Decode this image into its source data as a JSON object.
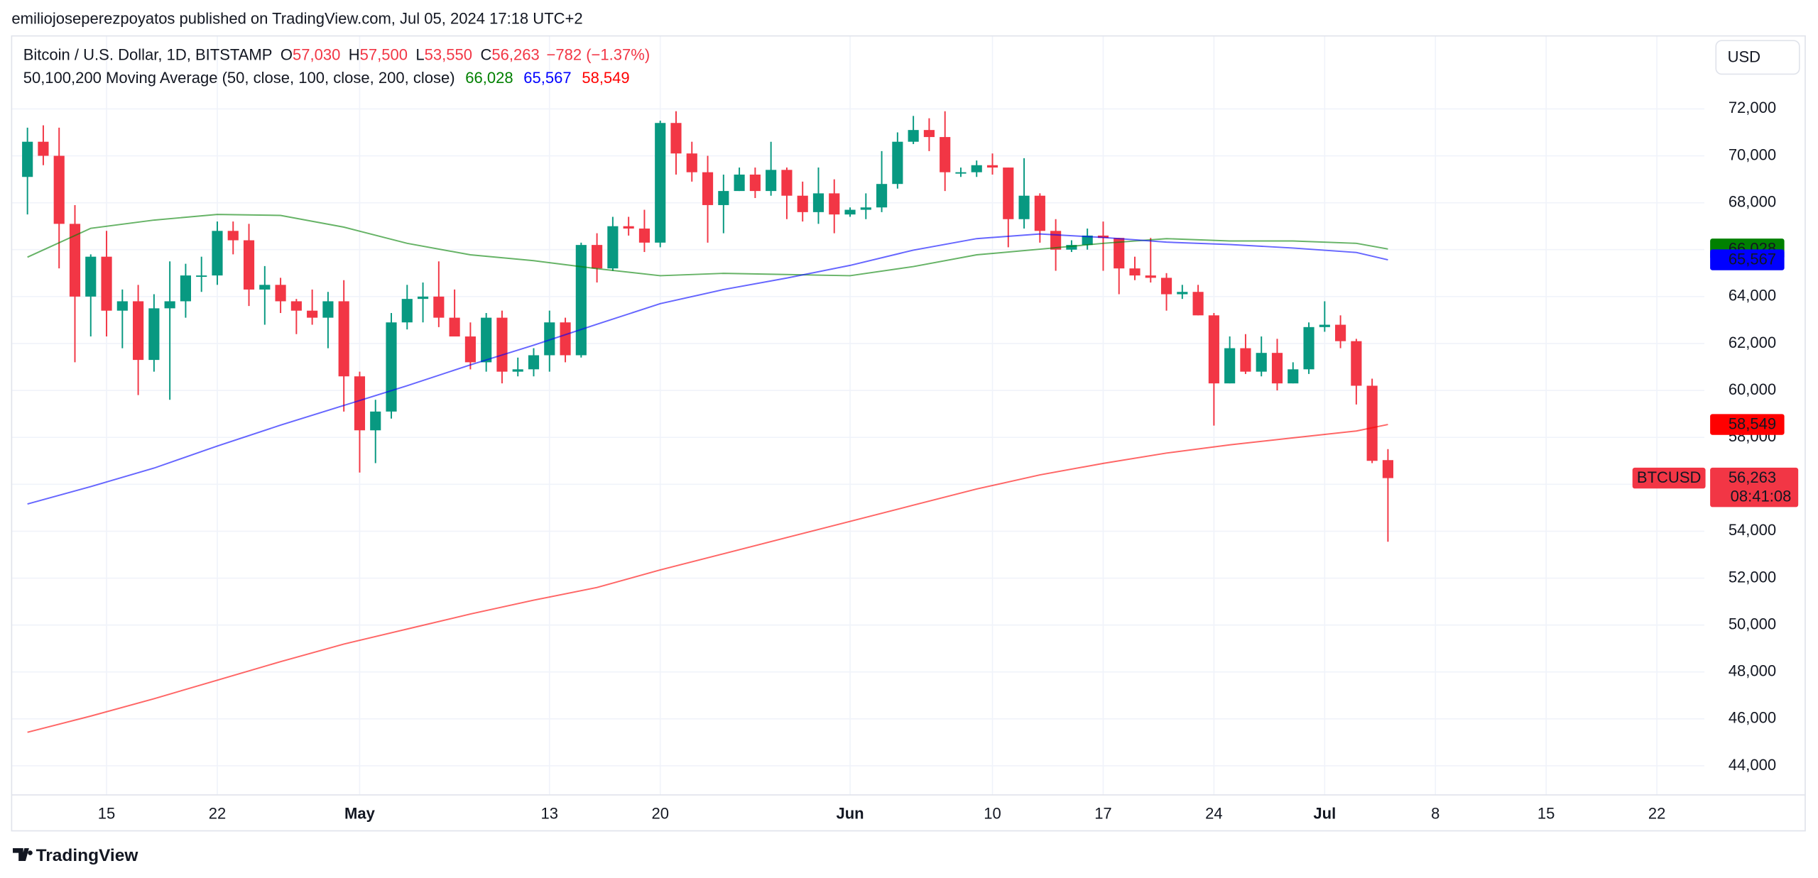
{
  "attribution": "emiliojoseperezpoyatos published on TradingView.com, Jul 05, 2024 17:18 UTC+2",
  "currency": "USD",
  "footer": "TradingView",
  "chart_data": {
    "type": "candlestick",
    "legend": {
      "symbol": "Bitcoin / U.S. Dollar, 1D, BITSTAMP",
      "ohlc": [
        {
          "key": "O",
          "label": "57,030"
        },
        {
          "key": "H",
          "label": "57,500"
        },
        {
          "key": "L",
          "label": "53,550"
        },
        {
          "key": "C",
          "label": "56,263"
        }
      ],
      "change": "−782 (−1.37%)",
      "ma_title": "50,100,200 Moving Average (50, close, 100, close, 200, close)"
    },
    "symbol_badge": "BTCUSD",
    "countdown": "08:41:08",
    "up_color": "#089981",
    "down_color": "#f23645",
    "x": [
      "2024-04-10",
      "2024-04-11",
      "2024-04-12",
      "2024-04-13",
      "2024-04-14",
      "2024-04-15",
      "2024-04-16",
      "2024-04-17",
      "2024-04-18",
      "2024-04-19",
      "2024-04-20",
      "2024-04-21",
      "2024-04-22",
      "2024-04-23",
      "2024-04-24",
      "2024-04-25",
      "2024-04-26",
      "2024-04-27",
      "2024-04-28",
      "2024-04-29",
      "2024-04-30",
      "2024-05-01",
      "2024-05-02",
      "2024-05-03",
      "2024-05-04",
      "2024-05-05",
      "2024-05-06",
      "2024-05-07",
      "2024-05-08",
      "2024-05-09",
      "2024-05-10",
      "2024-05-11",
      "2024-05-12",
      "2024-05-13",
      "2024-05-14",
      "2024-05-15",
      "2024-05-16",
      "2024-05-17",
      "2024-05-18",
      "2024-05-19",
      "2024-05-20",
      "2024-05-21",
      "2024-05-22",
      "2024-05-23",
      "2024-05-24",
      "2024-05-25",
      "2024-05-26",
      "2024-05-27",
      "2024-05-28",
      "2024-05-29",
      "2024-05-30",
      "2024-05-31",
      "2024-06-01",
      "2024-06-02",
      "2024-06-03",
      "2024-06-04",
      "2024-06-05",
      "2024-06-06",
      "2024-06-07",
      "2024-06-08",
      "2024-06-09",
      "2024-06-10",
      "2024-06-11",
      "2024-06-12",
      "2024-06-13",
      "2024-06-14",
      "2024-06-15",
      "2024-06-16",
      "2024-06-17",
      "2024-06-18",
      "2024-06-19",
      "2024-06-20",
      "2024-06-21",
      "2024-06-22",
      "2024-06-23",
      "2024-06-24",
      "2024-06-25",
      "2024-06-26",
      "2024-06-27",
      "2024-06-28",
      "2024-06-29",
      "2024-06-30",
      "2024-07-01",
      "2024-07-02",
      "2024-07-03",
      "2024-07-04",
      "2024-07-05"
    ],
    "open": [
      69100,
      70600,
      70000,
      67100,
      64000,
      65700,
      63400,
      63800,
      61300,
      63500,
      63800,
      64900,
      64900,
      66800,
      66400,
      64300,
      64500,
      63800,
      63400,
      63100,
      63800,
      60600,
      58300,
      59100,
      62900,
      63900,
      64000,
      63100,
      62300,
      61200,
      63100,
      60800,
      60900,
      61500,
      62900,
      61500,
      66200,
      65200,
      67000,
      66900,
      66300,
      71400,
      70100,
      69300,
      67900,
      68500,
      69200,
      68500,
      69400,
      68300,
      67600,
      68400,
      67500,
      67700,
      67800,
      68800,
      70600,
      71100,
      70800,
      69300,
      69300,
      69600,
      69500,
      67300,
      68300,
      66800,
      66000,
      66200,
      66600,
      66500,
      65200,
      64900,
      64800,
      64100,
      64200,
      63200,
      60300,
      61800,
      60800,
      61600,
      60300,
      60900,
      62700,
      62800,
      62100,
      60200,
      57030
    ],
    "high": [
      71200,
      71300,
      71200,
      67900,
      65800,
      66800,
      64300,
      64500,
      64100,
      65500,
      65400,
      65700,
      67200,
      67200,
      67100,
      65300,
      64800,
      63900,
      64300,
      64200,
      64700,
      60800,
      59600,
      63300,
      64500,
      64600,
      65500,
      64300,
      62900,
      63300,
      63400,
      61400,
      61800,
      63400,
      63100,
      66300,
      66700,
      67400,
      67400,
      67700,
      71500,
      71900,
      70600,
      70000,
      69200,
      69500,
      69500,
      70600,
      69500,
      68900,
      69500,
      69000,
      67800,
      68400,
      70200,
      71000,
      71700,
      71600,
      71900,
      69500,
      69800,
      70100,
      69500,
      69900,
      68400,
      67300,
      66400,
      66900,
      67200,
      66500,
      65700,
      66500,
      65000,
      64500,
      64500,
      63300,
      62300,
      62400,
      62300,
      62200,
      61200,
      62900,
      63800,
      63200,
      62200,
      60500,
      57500
    ],
    "low": [
      67500,
      69600,
      65200,
      61200,
      62300,
      62300,
      61800,
      59800,
      60800,
      59600,
      63100,
      64200,
      64500,
      65800,
      63600,
      62800,
      63300,
      62400,
      62800,
      61800,
      59100,
      56500,
      56900,
      58800,
      62600,
      62900,
      62700,
      62300,
      60900,
      60800,
      60300,
      60600,
      60600,
      60800,
      61200,
      61400,
      64600,
      65100,
      66600,
      65900,
      66100,
      69200,
      68900,
      66300,
      66700,
      68500,
      68200,
      68300,
      67300,
      67200,
      67100,
      66700,
      67400,
      67300,
      67600,
      68600,
      70500,
      70200,
      68500,
      69100,
      69100,
      69200,
      66100,
      66900,
      66300,
      65100,
      65900,
      66000,
      65100,
      64100,
      64700,
      64600,
      63400,
      63900,
      63200,
      58500,
      60300,
      60700,
      60600,
      60000,
      60300,
      60700,
      62500,
      61800,
      59400,
      56900,
      53550
    ],
    "close": [
      70600,
      70000,
      67100,
      64000,
      65700,
      63400,
      63800,
      61300,
      63500,
      63800,
      64900,
      64900,
      66800,
      66400,
      64300,
      64500,
      63800,
      63400,
      63100,
      63800,
      60600,
      58300,
      59100,
      62900,
      63900,
      64000,
      63100,
      62300,
      61200,
      63100,
      60800,
      60900,
      61500,
      62900,
      61500,
      66200,
      65200,
      67000,
      66900,
      66300,
      71400,
      70100,
      69300,
      67900,
      68500,
      69200,
      68500,
      69400,
      68300,
      67600,
      68400,
      67500,
      67700,
      67800,
      68800,
      70600,
      71100,
      70800,
      69300,
      69300,
      69600,
      69500,
      67300,
      68300,
      66800,
      66000,
      66200,
      66600,
      66500,
      65200,
      64900,
      64800,
      64100,
      64200,
      63200,
      60300,
      61800,
      60800,
      61600,
      60300,
      60900,
      62700,
      62800,
      62100,
      60200,
      57000,
      56263
    ],
    "overlays": [
      {
        "color": "#008000",
        "last_label": "66,028",
        "x": [
          "2024-04-10",
          "2024-04-14",
          "2024-04-18",
          "2024-04-22",
          "2024-04-26",
          "2024-04-30",
          "2024-05-04",
          "2024-05-08",
          "2024-05-12",
          "2024-05-16",
          "2024-05-20",
          "2024-05-24",
          "2024-05-28",
          "2024-06-01",
          "2024-06-05",
          "2024-06-09",
          "2024-06-13",
          "2024-06-17",
          "2024-06-21",
          "2024-06-25",
          "2024-06-29",
          "2024-07-03",
          "2024-07-05"
        ],
        "values": [
          65680,
          66910,
          67260,
          67500,
          67460,
          66960,
          66270,
          65780,
          65530,
          65190,
          64890,
          64990,
          64940,
          64890,
          65280,
          65780,
          66020,
          66270,
          66470,
          66370,
          66370,
          66270,
          66028
        ]
      },
      {
        "color": "#0000ff",
        "last_label": "65,567",
        "x": [
          "2024-04-10",
          "2024-04-14",
          "2024-04-18",
          "2024-04-22",
          "2024-04-26",
          "2024-04-30",
          "2024-05-04",
          "2024-05-08",
          "2024-05-12",
          "2024-05-16",
          "2024-05-20",
          "2024-05-24",
          "2024-05-28",
          "2024-06-01",
          "2024-06-05",
          "2024-06-09",
          "2024-06-13",
          "2024-06-17",
          "2024-06-21",
          "2024-06-25",
          "2024-06-29",
          "2024-07-03",
          "2024-07-05"
        ],
        "values": [
          55160,
          55900,
          56690,
          57630,
          58520,
          59360,
          60200,
          61090,
          61930,
          62820,
          63700,
          64300,
          64790,
          65330,
          65980,
          66470,
          66670,
          66520,
          66320,
          66220,
          66070,
          65880,
          65567
        ]
      },
      {
        "color": "#ff0000",
        "last_label": "58,549",
        "x": [
          "2024-04-10",
          "2024-04-14",
          "2024-04-18",
          "2024-04-22",
          "2024-04-26",
          "2024-04-30",
          "2024-05-04",
          "2024-05-08",
          "2024-05-12",
          "2024-05-16",
          "2024-05-20",
          "2024-05-24",
          "2024-05-28",
          "2024-06-01",
          "2024-06-05",
          "2024-06-09",
          "2024-06-13",
          "2024-06-17",
          "2024-06-21",
          "2024-06-25",
          "2024-06-29",
          "2024-07-03",
          "2024-07-05"
        ],
        "values": [
          45430,
          46120,
          46860,
          47650,
          48440,
          49190,
          49830,
          50470,
          51060,
          51600,
          52350,
          53040,
          53730,
          54420,
          55110,
          55800,
          56400,
          56890,
          57330,
          57680,
          57980,
          58270,
          58549
        ]
      }
    ],
    "xlim": [
      "2024-04-09",
      "2024-07-25"
    ],
    "xticks": [
      {
        "value": "2024-04-15",
        "label": "15"
      },
      {
        "value": "2024-04-22",
        "label": "22"
      },
      {
        "value": "2024-05-01",
        "label": "May"
      },
      {
        "value": "2024-05-13",
        "label": "13"
      },
      {
        "value": "2024-05-20",
        "label": "20"
      },
      {
        "value": "2024-06-01",
        "label": "Jun"
      },
      {
        "value": "2024-06-10",
        "label": "10"
      },
      {
        "value": "2024-06-17",
        "label": "17"
      },
      {
        "value": "2024-06-24",
        "label": "24"
      },
      {
        "value": "2024-07-01",
        "label": "Jul"
      },
      {
        "value": "2024-07-08",
        "label": "8"
      },
      {
        "value": "2024-07-15",
        "label": "15"
      },
      {
        "value": "2024-07-22",
        "label": "22"
      }
    ],
    "ylim": [
      42760,
      75110
    ],
    "yticks": [
      {
        "value": 44000,
        "label": "44,000"
      },
      {
        "value": 46000,
        "label": "46,000"
      },
      {
        "value": 48000,
        "label": "48,000"
      },
      {
        "value": 50000,
        "label": "50,000"
      },
      {
        "value": 52000,
        "label": "52,000"
      },
      {
        "value": 54000,
        "label": "54,000"
      },
      {
        "value": 56000,
        "label": "56,000"
      },
      {
        "value": 58000,
        "label": "58,000"
      },
      {
        "value": 60000,
        "label": "60,000"
      },
      {
        "value": 62000,
        "label": "62,000"
      },
      {
        "value": 64000,
        "label": "64,000"
      },
      {
        "value": 66000,
        "label": "66,000"
      },
      {
        "value": 68000,
        "label": "68,000"
      },
      {
        "value": 70000,
        "label": "70,000"
      },
      {
        "value": 72000,
        "label": "72,000"
      }
    ],
    "grid": true
  }
}
